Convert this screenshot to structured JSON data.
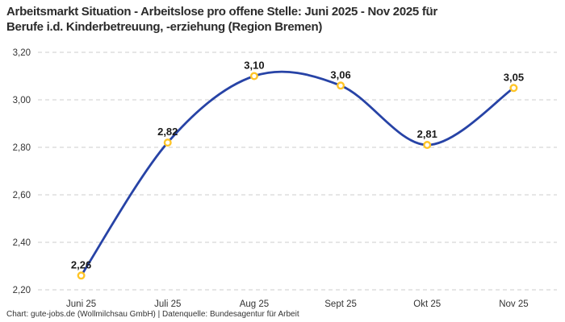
{
  "header": {
    "title_lines": [
      "Arbeitsmarkt Situation - Arbeitslose pro offene Stelle: Juni 2025 - Nov 2025 für",
      "Berufe i.d. Kinderbetreuung, -erziehung (Region Bremen)"
    ]
  },
  "footer": {
    "credit": "Chart: gute-jobs.de (Wollmilchsau GmbH) | Datenquelle: Bundesagentur für Arbeit"
  },
  "colors": {
    "line": "#2743A6",
    "marker": "#FFC527",
    "marker_fill": "#ffffff",
    "grid": "#cccccc",
    "axis_text": "#333333",
    "label_text": "#1a1a1a",
    "background": "#ffffff"
  },
  "chart_data": {
    "type": "line",
    "title": "Arbeitsmarkt Situation - Arbeitslose pro offene Stelle: Juni 2025 - Nov 2025 für Berufe i.d. Kinderbetreuung, -erziehung (Region Bremen)",
    "categories": [
      "Juni 25",
      "Juli 25",
      "Aug 25",
      "Sept 25",
      "Okt 25",
      "Nov 25"
    ],
    "values": [
      2.26,
      2.82,
      3.1,
      3.06,
      2.81,
      3.05
    ],
    "point_labels": [
      "2,26",
      "2,82",
      "3,10",
      "3,06",
      "2,81",
      "3,05"
    ],
    "y_tick_labels": [
      "2,20",
      "2,40",
      "2,60",
      "2,80",
      "3,00",
      "3,20"
    ],
    "y_tick_values": [
      2.2,
      2.4,
      2.6,
      2.8,
      3.0,
      3.2
    ],
    "ylim": [
      2.2,
      3.2
    ],
    "xlabel": "",
    "ylabel": "",
    "legend": "none",
    "grid": "horizontal-dashed",
    "curve": "smooth"
  }
}
